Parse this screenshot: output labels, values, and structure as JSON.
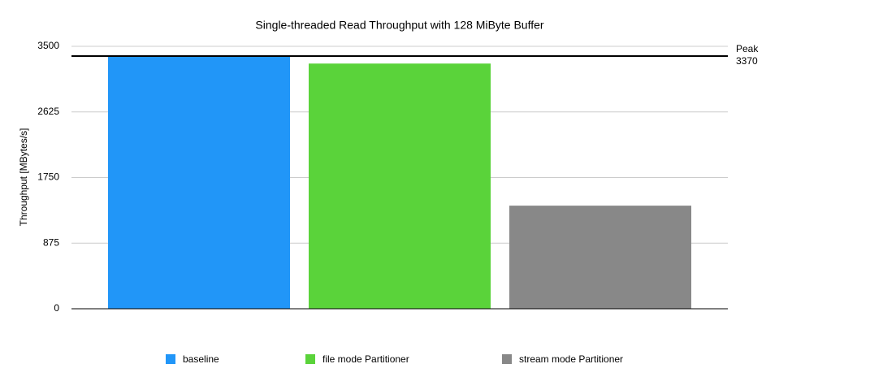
{
  "chart_data": {
    "type": "bar",
    "title": "Single-threaded Read Throughput with 128 MiByte Buffer",
    "y_label": "Throughput [MBytes/s]",
    "categories": [
      null
    ],
    "series": [
      {
        "name": "baseline",
        "color": "#2196f8",
        "values": [
          3370
        ]
      },
      {
        "name": "file mode Partitioner",
        "color": "#5ad33a",
        "values": [
          3270
        ]
      },
      {
        "name": "stream mode Partitioner",
        "color": "#888888",
        "values": [
          1375
        ]
      }
    ],
    "ylim": [
      0,
      3500
    ],
    "yticks": [
      0,
      875,
      1750,
      2625,
      3500
    ],
    "grid": true,
    "reference_line": {
      "label": "Peak",
      "value": 3370,
      "color": "#000000"
    },
    "legend": "bottom"
  }
}
